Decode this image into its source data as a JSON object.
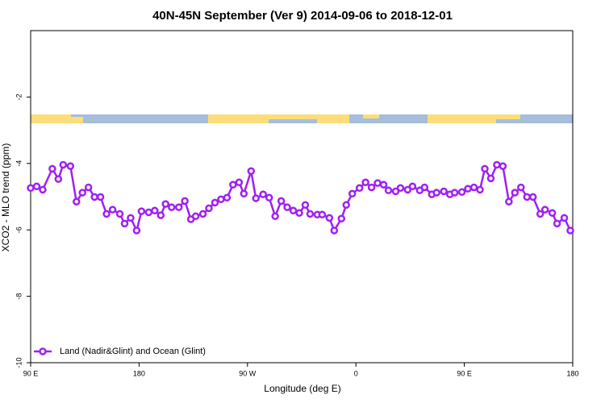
{
  "chart_data": {
    "type": "line",
    "title": "40N-45N September (Ver 9)   2014-09-06 to 2018-12-01",
    "xlabel": "Longitude (deg E)",
    "ylabel": "XCO2 - MLO trend (ppm)",
    "xlim": [
      90,
      540
    ],
    "ylim": [
      -10,
      0
    ],
    "xticks": [
      {
        "value": 90,
        "label": "90 E"
      },
      180,
      {
        "value": 270,
        "label": "90 W"
      },
      {
        "value": 360,
        "label": "0"
      },
      {
        "value": 450,
        "label": "90 E"
      },
      {
        "value": 540,
        "label": "180"
      }
    ],
    "yticks": [
      -10,
      -8,
      -6,
      -4,
      -2
    ],
    "grid": false,
    "legend": "bottom-left",
    "x": [
      90,
      95,
      100,
      108,
      113,
      117,
      123,
      128,
      133,
      138,
      143,
      148,
      153,
      158,
      164,
      168,
      173,
      178,
      182,
      188,
      193,
      198,
      202,
      207,
      213,
      218,
      223,
      227,
      233,
      238,
      243,
      248,
      253,
      258,
      263,
      267,
      273,
      277,
      283,
      288,
      293,
      298,
      303,
      308,
      313,
      318,
      322,
      328,
      332,
      338,
      342,
      348,
      352,
      357,
      363,
      368,
      373,
      378,
      383,
      387,
      393,
      397,
      403,
      407,
      413,
      417,
      423,
      427,
      433,
      438,
      442,
      448,
      453,
      458,
      463,
      467,
      472,
      477,
      482,
      487,
      492,
      497,
      502,
      507,
      513,
      517,
      523,
      527,
      533,
      538
    ],
    "series": [
      {
        "name": "Land (Nadir&Glint) and Ocean (Glint)",
        "color": "#a020f0",
        "values": [
          -4.74,
          -4.69,
          -4.79,
          -4.16,
          -4.47,
          -4.04,
          -4.08,
          -5.15,
          -4.88,
          -4.72,
          -5.01,
          -5.01,
          -5.52,
          -5.39,
          -5.52,
          -5.81,
          -5.64,
          -6.02,
          -5.44,
          -5.47,
          -5.42,
          -5.56,
          -5.22,
          -5.32,
          -5.32,
          -5.13,
          -5.68,
          -5.59,
          -5.52,
          -5.35,
          -5.18,
          -5.08,
          -5.03,
          -4.64,
          -4.57,
          -4.91,
          -4.23,
          -5.05,
          -4.93,
          -5.03,
          -5.59,
          -5.13,
          -5.32,
          -5.42,
          -5.49,
          -5.25,
          -5.52,
          -5.54,
          -5.54,
          -5.64,
          -6.02,
          -5.66,
          -5.25,
          -4.91,
          -4.74,
          -4.57,
          -4.72,
          -4.59,
          -4.64,
          -4.81,
          -4.84,
          -4.74,
          -4.79,
          -4.69,
          -4.81,
          -4.72,
          -4.93,
          -4.88,
          -4.84,
          -4.93,
          -4.88,
          -4.86,
          -4.76,
          -4.72,
          -4.79,
          -4.16,
          -4.45,
          -4.04,
          -4.08,
          -5.15,
          -4.88,
          -4.72,
          -5.01,
          -5.01,
          -5.52,
          -5.39,
          -5.49,
          -5.81,
          -5.64,
          -6.02
        ]
      }
    ]
  }
}
